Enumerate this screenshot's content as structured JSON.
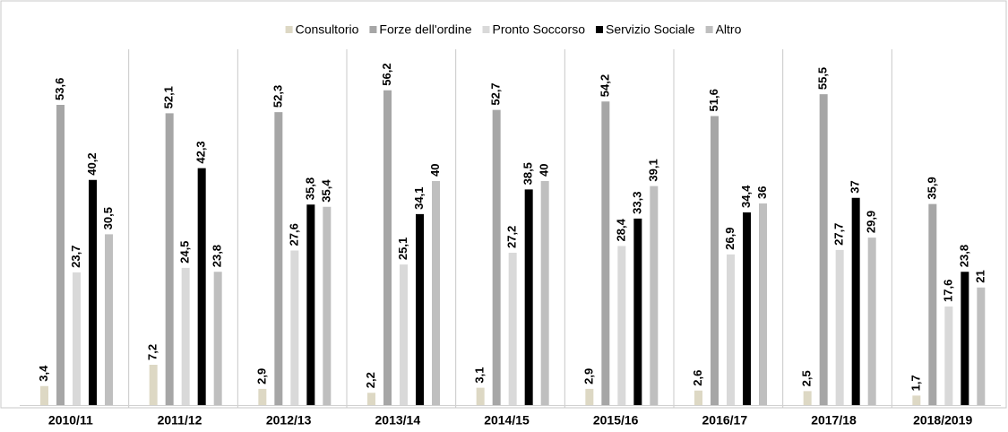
{
  "chart_data": {
    "type": "bar",
    "categories": [
      "2010/11",
      "2011/12",
      "2012/13",
      "2013/14",
      "2014/15",
      "2015/16",
      "2016/17",
      "2017/18",
      "2018/2019"
    ],
    "series": [
      {
        "name": "Consultorio",
        "color": "#ddd8c4",
        "values": [
          3.4,
          7.2,
          2.9,
          2.2,
          3.1,
          2.9,
          2.6,
          2.5,
          1.7
        ],
        "value_labels": [
          "3,4",
          "7,2",
          "2,9",
          "2,2",
          "3,1",
          "2,9",
          "2,6",
          "2,5",
          "1,7"
        ]
      },
      {
        "name": "Forze dell'ordine",
        "color": "#a6a6a6",
        "values": [
          53.6,
          52.1,
          52.3,
          56.2,
          52.7,
          54.2,
          51.6,
          55.5,
          35.9
        ],
        "value_labels": [
          "53,6",
          "52,1",
          "52,3",
          "56,2",
          "52,7",
          "54,2",
          "51,6",
          "55,5",
          "35,9"
        ]
      },
      {
        "name": "Pronto Soccorso",
        "color": "#d9d9d9",
        "values": [
          23.7,
          24.5,
          27.6,
          25.1,
          27.2,
          28.4,
          26.9,
          27.7,
          17.6
        ],
        "value_labels": [
          "23,7",
          "24,5",
          "27,6",
          "25,1",
          "27,2",
          "28,4",
          "26,9",
          "27,7",
          "17,6"
        ]
      },
      {
        "name": "Servizio Sociale",
        "color": "#000000",
        "values": [
          40.2,
          42.3,
          35.8,
          34.1,
          38.5,
          33.3,
          34.4,
          37,
          23.8
        ],
        "value_labels": [
          "40,2",
          "42,3",
          "35,8",
          "34,1",
          "38,5",
          "33,3",
          "34,4",
          "37",
          "23,8"
        ]
      },
      {
        "name": "Altro",
        "color": "#bfbfbf",
        "values": [
          30.5,
          23.8,
          35.4,
          40,
          40,
          39.1,
          36,
          29.9,
          21
        ],
        "value_labels": [
          "30,5",
          "23,8",
          "35,4",
          "40",
          "40",
          "39,1",
          "36",
          "29,9",
          "21"
        ]
      }
    ],
    "legend": "top"
  }
}
